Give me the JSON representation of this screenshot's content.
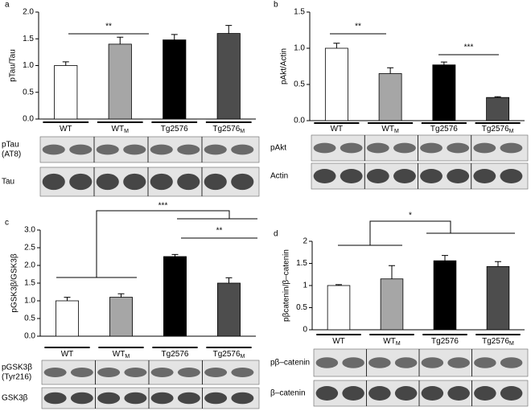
{
  "chart_data": [
    {
      "type": "bar",
      "panel": "a",
      "ylabel": "pTau/Tau",
      "categories": [
        "WT",
        "WT",
        "Tg2576",
        "Tg2576"
      ],
      "category_subscripts": [
        "",
        "M",
        "",
        "M"
      ],
      "values": [
        1.0,
        1.4,
        1.48,
        1.6
      ],
      "errors": [
        0.07,
        0.13,
        0.1,
        0.15
      ],
      "colors": [
        "#ffffff",
        "#a6a6a6",
        "#000000",
        "#4d4d4d"
      ],
      "ylim": [
        0,
        2
      ],
      "yticks": [
        {
          "value": 0,
          "label": "0.0"
        },
        {
          "value": 0.5,
          "label": "0.5"
        },
        {
          "value": 1,
          "label": "1.0"
        },
        {
          "value": 1.5,
          "label": "1.5"
        },
        {
          "value": 2,
          "label": "2.0"
        }
      ],
      "annotations": [
        "**"
      ],
      "blot_labels": [
        [
          "pTau",
          "(AT8)"
        ],
        [
          "Tau"
        ]
      ]
    },
    {
      "type": "bar",
      "panel": "b",
      "ylabel": "pAkt/Actin",
      "categories": [
        "WT",
        "WT",
        "Tg2576",
        "Tg2576"
      ],
      "category_subscripts": [
        "",
        "M",
        "",
        "M"
      ],
      "values": [
        1.0,
        0.65,
        0.77,
        0.32
      ],
      "errors": [
        0.07,
        0.08,
        0.04,
        0.01
      ],
      "colors": [
        "#ffffff",
        "#a6a6a6",
        "#000000",
        "#4d4d4d"
      ],
      "ylim": [
        0,
        1.5
      ],
      "yticks": [
        {
          "value": 0,
          "label": "0.0"
        },
        {
          "value": 0.5,
          "label": "0.5"
        },
        {
          "value": 1,
          "label": "1.0"
        },
        {
          "value": 1.5,
          "label": "1.5"
        }
      ],
      "annotations": [
        "**",
        "***"
      ],
      "blot_labels": [
        [
          "pAkt"
        ],
        [
          "Actin"
        ]
      ]
    },
    {
      "type": "bar",
      "panel": "c",
      "ylabel": "pGSK3β/GSK3β",
      "categories": [
        "WT",
        "WT",
        "Tg2576",
        "Tg2576"
      ],
      "category_subscripts": [
        "",
        "M",
        "",
        "M"
      ],
      "values": [
        1.0,
        1.1,
        2.25,
        1.5
      ],
      "errors": [
        0.1,
        0.1,
        0.06,
        0.15
      ],
      "colors": [
        "#ffffff",
        "#a6a6a6",
        "#000000",
        "#4d4d4d"
      ],
      "ylim": [
        0,
        3
      ],
      "yticks": [
        {
          "value": 0,
          "label": "0.0"
        },
        {
          "value": 0.5,
          "label": "0.5"
        },
        {
          "value": 1,
          "label": "1.0"
        },
        {
          "value": 1.5,
          "label": "1.5"
        },
        {
          "value": 2,
          "label": "2.0"
        },
        {
          "value": 2.5,
          "label": "2.5"
        },
        {
          "value": 3,
          "label": "3.0"
        }
      ],
      "annotations": [
        "***",
        "**"
      ],
      "blot_labels": [
        [
          "pGSK3β",
          "(Tyr216)"
        ],
        [
          "GSK3β"
        ]
      ]
    },
    {
      "type": "bar",
      "panel": "d",
      "ylabel": "pβcatenin/β–catenin",
      "categories": [
        "WT",
        "WT",
        "Tg2576",
        "Tg2576"
      ],
      "category_subscripts": [
        "",
        "M",
        "",
        "M"
      ],
      "values": [
        1.0,
        1.15,
        1.56,
        1.43
      ],
      "errors": [
        0.02,
        0.3,
        0.12,
        0.11
      ],
      "colors": [
        "#ffffff",
        "#a6a6a6",
        "#000000",
        "#4d4d4d"
      ],
      "ylim": [
        0,
        2
      ],
      "yticks": [
        0,
        0.5,
        1,
        1.5,
        2
      ],
      "annotations": [
        "*"
      ],
      "blot_labels": [
        [
          "pβ–catenin"
        ],
        [
          "β–catenin"
        ]
      ]
    }
  ]
}
